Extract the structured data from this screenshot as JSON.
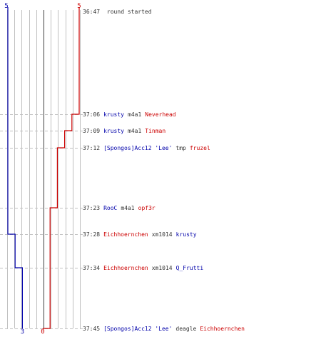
{
  "colors": {
    "blue_team": "#0000aa",
    "red_team": "#cc0000",
    "grid": "#c0c0c0",
    "center_line": "#404040",
    "dashed": "#c0c0c0",
    "text": "#333333"
  },
  "chart_data": {
    "type": "line",
    "y_axis": "time",
    "start_time": "36:47",
    "start_label": "round started",
    "series": [
      {
        "team": "blue",
        "color": "#0000aa",
        "start_count": 5,
        "end_count": 3,
        "steps": [
          {
            "time": "37:28",
            "count": 4
          },
          {
            "time": "37:34",
            "count": 3
          }
        ]
      },
      {
        "team": "red",
        "color": "#cc0000",
        "start_count": 5,
        "end_count": 0,
        "steps": [
          {
            "time": "37:06",
            "count": 4
          },
          {
            "time": "37:09",
            "count": 3
          },
          {
            "time": "37:12",
            "count": 2
          },
          {
            "time": "37:23",
            "count": 1
          },
          {
            "time": "37:45",
            "count": 0
          }
        ]
      }
    ],
    "labels": {
      "blue_top": "5",
      "red_top": "5",
      "blue_bottom": "3",
      "red_bottom": "0"
    }
  },
  "events": [
    {
      "time": "37:06",
      "killer": "krusty",
      "killer_team": "blue",
      "weapon": "m4a1",
      "victim": "Neverhead",
      "victim_team": "red"
    },
    {
      "time": "37:09",
      "killer": "krusty",
      "killer_team": "blue",
      "weapon": "m4a1",
      "victim": "Tinman",
      "victim_team": "red"
    },
    {
      "time": "37:12",
      "killer": "[Spongos]Acc12 'Lee'",
      "killer_team": "blue",
      "weapon": "tmp",
      "victim": "fruzel",
      "victim_team": "red"
    },
    {
      "time": "37:23",
      "killer": "RooC",
      "killer_team": "blue",
      "weapon": "m4a1",
      "victim": "opf3r",
      "victim_team": "red"
    },
    {
      "time": "37:28",
      "killer": "Eichhoernchen",
      "killer_team": "red",
      "weapon": "xm1014",
      "victim": "krusty",
      "victim_team": "blue"
    },
    {
      "time": "37:34",
      "killer": "Eichhoernchen",
      "killer_team": "red",
      "weapon": "xm1014",
      "victim": "Q_Frutti",
      "victim_team": "blue"
    },
    {
      "time": "37:45",
      "killer": "[Spongos]Acc12 'Lee'",
      "killer_team": "blue",
      "weapon": "deagle",
      "victim": "Eichhoernchen",
      "victim_team": "red"
    }
  ]
}
